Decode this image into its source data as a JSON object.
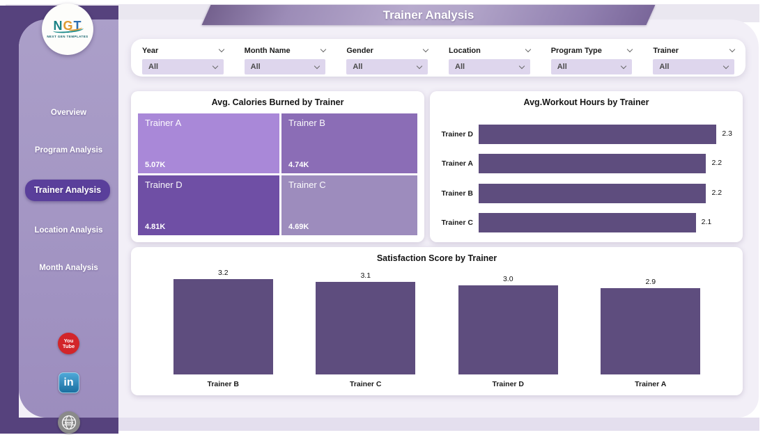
{
  "banner": {
    "title": "Trainer Analysis"
  },
  "logo": {
    "letters": [
      {
        "ch": "N",
        "color": "#1a8286"
      },
      {
        "ch": "G",
        "color": "#e09a32"
      },
      {
        "ch": "T",
        "color": "#2e6fb2"
      }
    ],
    "subtext": "NEXT GEN TEMPLATES"
  },
  "sidebar": {
    "items": [
      {
        "label": "Overview",
        "active": false
      },
      {
        "label": "Program Analysis",
        "active": false
      },
      {
        "label": "Trainer Analysis",
        "active": true
      },
      {
        "label": "Location Analysis",
        "active": false
      },
      {
        "label": "Month Analysis",
        "active": false
      }
    ],
    "social": [
      {
        "name": "youtube",
        "lines": [
          "You",
          "Tube"
        ]
      },
      {
        "name": "linkedin",
        "text": "in"
      },
      {
        "name": "web",
        "text": "www"
      }
    ]
  },
  "filters": [
    {
      "label": "Year",
      "value": "All"
    },
    {
      "label": "Month Name",
      "value": "All"
    },
    {
      "label": "Gender",
      "value": "All"
    },
    {
      "label": "Location",
      "value": "All"
    },
    {
      "label": "Program Type",
      "value": "All"
    },
    {
      "label": "Trainer",
      "value": "All"
    }
  ],
  "chart_data": [
    {
      "type": "treemap",
      "title": "Avg. Calories Burned by Trainer",
      "items": [
        {
          "name": "Trainer A",
          "value": 5070,
          "value_label": "5.07K",
          "color": "#a988d8"
        },
        {
          "name": "Trainer B",
          "value": 4740,
          "value_label": "4.74K",
          "color": "#8b6db6"
        },
        {
          "name": "Trainer D",
          "value": 4810,
          "value_label": "4.81K",
          "color": "#6f4fa5"
        },
        {
          "name": "Trainer C",
          "value": 4690,
          "value_label": "4.69K",
          "color": "#9d8cbd"
        }
      ]
    },
    {
      "type": "bar",
      "orientation": "horizontal",
      "title": "Avg.Workout Hours by Trainer",
      "categories": [
        "Trainer D",
        "Trainer A",
        "Trainer B",
        "Trainer C"
      ],
      "values": [
        2.3,
        2.2,
        2.2,
        2.1
      ],
      "xlim": [
        0,
        2.3
      ],
      "bar_color": "#5e4d7e"
    },
    {
      "type": "bar",
      "orientation": "vertical",
      "title": "Satisfaction Score by Trainer",
      "categories": [
        "Trainer B",
        "Trainer C",
        "Trainer D",
        "Trainer A"
      ],
      "values": [
        3.2,
        3.1,
        3.0,
        2.9
      ],
      "ylim": [
        0,
        3.2
      ],
      "bar_color": "#5e4d7e"
    }
  ],
  "colors": {
    "accent": "#5a3f9b",
    "sidebar": "#a395c3",
    "dark_back": "#56427d",
    "bar": "#5e4d7e",
    "youtube_red": "#d2252a",
    "linkedin_blue": "#1a6fa0"
  }
}
